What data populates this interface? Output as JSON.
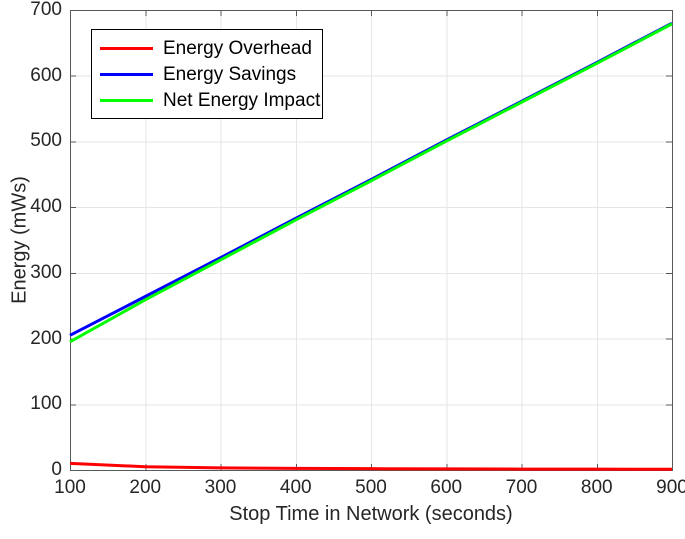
{
  "figure": {
    "background": "#ffffff",
    "text_color": "#262626"
  },
  "legend": {
    "position": "top-left",
    "border_color": "#000000",
    "background": "#ffffff"
  },
  "chart_data": {
    "type": "line",
    "title": "",
    "xlabel": "Stop Time in Network (seconds)",
    "ylabel": "Energy (mWs)",
    "xlim": [
      100,
      900
    ],
    "ylim": [
      0,
      700
    ],
    "grid": true,
    "grid_color": "#e6e6e6",
    "axis_color": "#595959",
    "legend_position": "top-left",
    "x": [
      100,
      200,
      300,
      400,
      500,
      600,
      700,
      800,
      900
    ],
    "x_tick_labels": [
      "100",
      "200",
      "300",
      "400",
      "500",
      "600",
      "700",
      "800",
      "900"
    ],
    "y_tick_labels": [
      "0",
      "100",
      "200",
      "300",
      "400",
      "500",
      "600",
      "700"
    ],
    "series": [
      {
        "name": "Energy Overhead",
        "color": "#ff0000",
        "values": [
          10,
          5,
          3.3,
          2.5,
          2,
          1.7,
          1.4,
          1.3,
          1.1
        ]
      },
      {
        "name": "Energy Savings",
        "color": "#0000ff",
        "values": [
          205,
          264,
          323,
          383,
          442,
          502,
          561,
          620,
          680
        ]
      },
      {
        "name": "Net Energy Impact",
        "color": "#00ff00",
        "values": [
          195,
          259,
          319.7,
          380.5,
          440,
          500.3,
          559.6,
          618.7,
          678.9
        ]
      }
    ]
  }
}
